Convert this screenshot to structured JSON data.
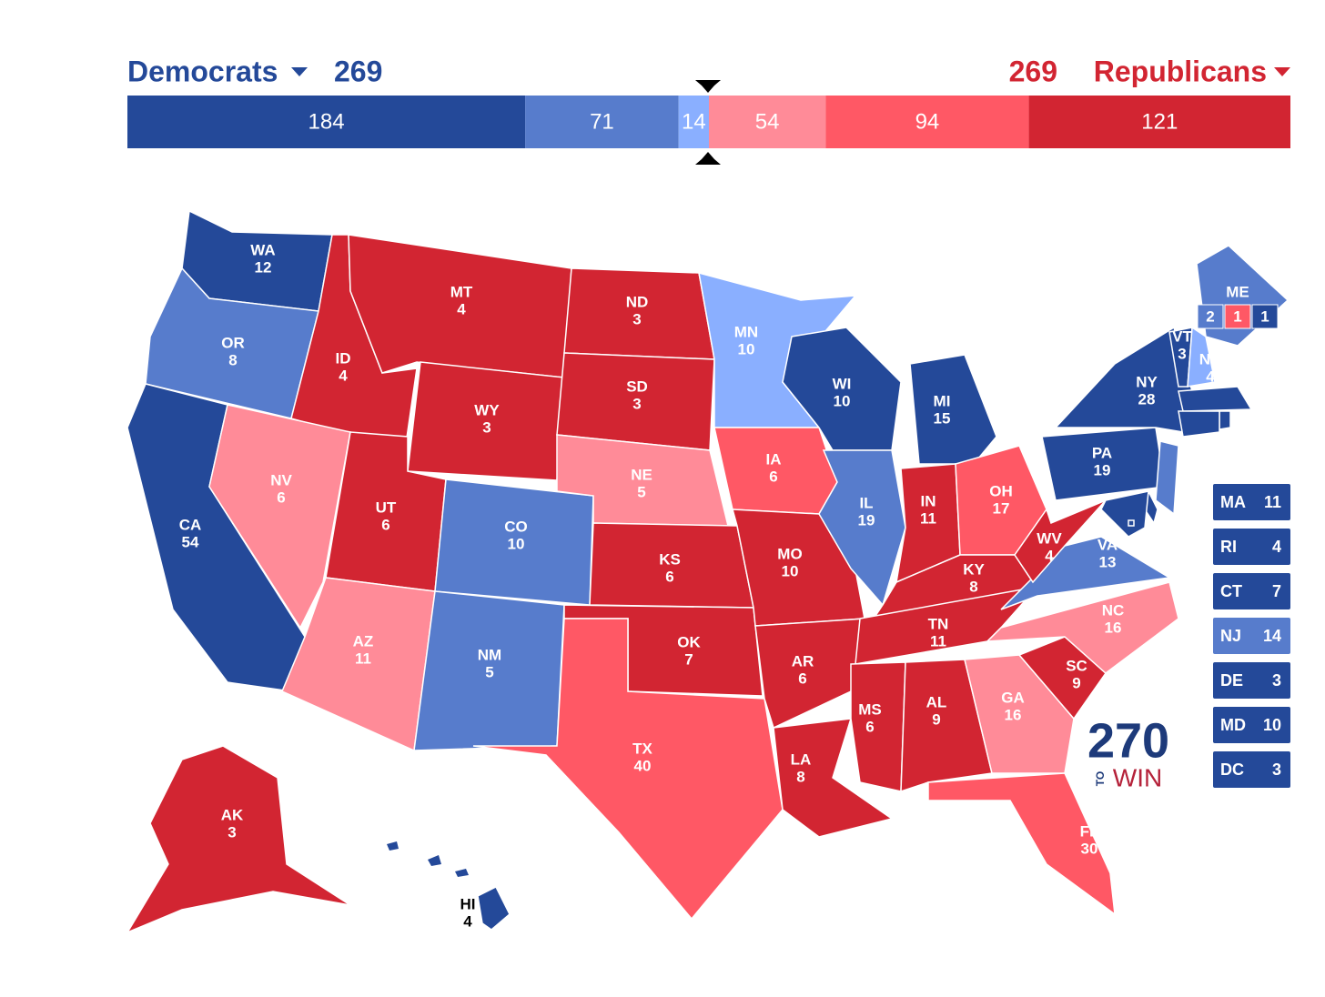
{
  "header": {
    "dem_label": "Democrats",
    "dem_total": 269,
    "rep_label": "Republicans",
    "rep_total": 269
  },
  "ratings": {
    "safe_d": "#244999",
    "likely_d": "#577ccc",
    "lean_d": "#8aafff",
    "lean_r": "#ff8b98",
    "likely_r": "#ff5865",
    "safe_r": "#d22532"
  },
  "bar": [
    {
      "value": 184,
      "rating": "safe_d"
    },
    {
      "value": 71,
      "rating": "likely_d"
    },
    {
      "value": 14,
      "rating": "lean_d"
    },
    {
      "value": 54,
      "rating": "lean_r"
    },
    {
      "value": 94,
      "rating": "likely_r"
    },
    {
      "value": 121,
      "rating": "safe_r"
    }
  ],
  "states": [
    {
      "label": "WA",
      "votes": 12,
      "rating": "safe_d"
    },
    {
      "label": "OR",
      "votes": 8,
      "rating": "likely_d"
    },
    {
      "label": "CA",
      "votes": 54,
      "rating": "safe_d"
    },
    {
      "label": "ID",
      "votes": 4,
      "rating": "safe_r"
    },
    {
      "label": "NV",
      "votes": 6,
      "rating": "lean_r"
    },
    {
      "label": "MT",
      "votes": 4,
      "rating": "safe_r"
    },
    {
      "label": "WY",
      "votes": 3,
      "rating": "safe_r"
    },
    {
      "label": "UT",
      "votes": 6,
      "rating": "safe_r"
    },
    {
      "label": "AZ",
      "votes": 11,
      "rating": "lean_r"
    },
    {
      "label": "CO",
      "votes": 10,
      "rating": "likely_d"
    },
    {
      "label": "NM",
      "votes": 5,
      "rating": "likely_d"
    },
    {
      "label": "ND",
      "votes": 3,
      "rating": "safe_r"
    },
    {
      "label": "SD",
      "votes": 3,
      "rating": "safe_r"
    },
    {
      "label": "NE",
      "votes": 5,
      "rating": "lean_r"
    },
    {
      "label": "KS",
      "votes": 6,
      "rating": "safe_r"
    },
    {
      "label": "OK",
      "votes": 7,
      "rating": "safe_r"
    },
    {
      "label": "TX",
      "votes": 40,
      "rating": "likely_r"
    },
    {
      "label": "MN",
      "votes": 10,
      "rating": "lean_d"
    },
    {
      "label": "IA",
      "votes": 6,
      "rating": "likely_r"
    },
    {
      "label": "MO",
      "votes": 10,
      "rating": "safe_r"
    },
    {
      "label": "AR",
      "votes": 6,
      "rating": "safe_r"
    },
    {
      "label": "LA",
      "votes": 8,
      "rating": "safe_r"
    },
    {
      "label": "WI",
      "votes": 10,
      "rating": "safe_d"
    },
    {
      "label": "MI",
      "votes": 15,
      "rating": "safe_d"
    },
    {
      "label": "IL",
      "votes": 19,
      "rating": "likely_d"
    },
    {
      "label": "IN",
      "votes": 11,
      "rating": "safe_r"
    },
    {
      "label": "OH",
      "votes": 17,
      "rating": "likely_r"
    },
    {
      "label": "KY",
      "votes": 8,
      "rating": "safe_r"
    },
    {
      "label": "TN",
      "votes": 11,
      "rating": "safe_r"
    },
    {
      "label": "MS",
      "votes": 6,
      "rating": "safe_r"
    },
    {
      "label": "AL",
      "votes": 9,
      "rating": "safe_r"
    },
    {
      "label": "GA",
      "votes": 16,
      "rating": "lean_r"
    },
    {
      "label": "FL",
      "votes": 30,
      "rating": "likely_r"
    },
    {
      "label": "SC",
      "votes": 9,
      "rating": "safe_r"
    },
    {
      "label": "NC",
      "votes": 16,
      "rating": "lean_r"
    },
    {
      "label": "VA",
      "votes": 13,
      "rating": "likely_d"
    },
    {
      "label": "WV",
      "votes": 4,
      "rating": "safe_r"
    },
    {
      "label": "PA",
      "votes": 19,
      "rating": "safe_d"
    },
    {
      "label": "NY",
      "votes": 28,
      "rating": "safe_d"
    },
    {
      "label": "VT",
      "votes": 3,
      "rating": "safe_d"
    },
    {
      "label": "NH",
      "votes": 4,
      "rating": "lean_d"
    },
    {
      "label": "AK",
      "votes": 3,
      "rating": "safe_r"
    },
    {
      "label": "HI",
      "votes": 4,
      "rating": "safe_d"
    },
    {
      "label": "MA",
      "votes": 11,
      "rating": "safe_d"
    },
    {
      "label": "RI",
      "votes": 4,
      "rating": "safe_d"
    },
    {
      "label": "CT",
      "votes": 7,
      "rating": "safe_d"
    },
    {
      "label": "NJ",
      "votes": 14,
      "rating": "likely_d"
    },
    {
      "label": "DE",
      "votes": 3,
      "rating": "safe_d"
    },
    {
      "label": "MD",
      "votes": 10,
      "rating": "safe_d"
    },
    {
      "label": "DC",
      "votes": 3,
      "rating": "safe_d"
    },
    {
      "label": "ME",
      "rating": "likely_d",
      "splits": [
        {
          "votes": 2,
          "rating": "likely_d"
        },
        {
          "votes": 1,
          "rating": "likely_r"
        },
        {
          "votes": 1,
          "rating": "safe_d"
        }
      ]
    }
  ],
  "logo": {
    "number": "270",
    "to": "TO",
    "win": "WIN"
  }
}
